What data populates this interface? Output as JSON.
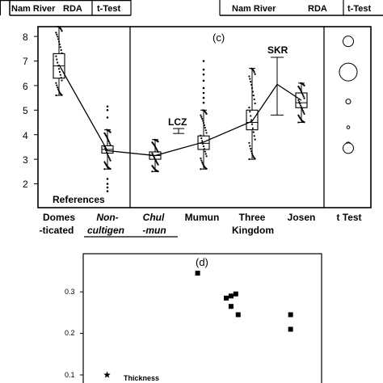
{
  "header": {
    "left_group": [
      "Nam River",
      "RDA",
      "t-Test"
    ],
    "right_group": [
      "Nam River",
      "RDA",
      "t-Test"
    ]
  },
  "panel_c": {
    "label": "(c)",
    "y_ticks": [
      "8",
      "7",
      "6",
      "5",
      "4",
      "3",
      "2"
    ],
    "references_label": "References",
    "annotations": {
      "lcz": "LCZ",
      "skr": "SKR"
    },
    "x_labels": [
      {
        "line1": "Domes",
        "line2": "-ticated",
        "style": "normal"
      },
      {
        "line1": "Non-",
        "line2": "cultigen",
        "style": "italic-underline"
      },
      {
        "line1": "Chul",
        "line2": "-mun",
        "style": "italic-underline"
      },
      {
        "line1": "Mumun",
        "line2": "",
        "style": "normal"
      },
      {
        "line1": "Three",
        "line2": "Kingdom",
        "style": "normal"
      },
      {
        "line1": "Josen",
        "line2": "",
        "style": "normal"
      },
      {
        "line1": "t Test",
        "line2": "",
        "style": "normal"
      }
    ]
  },
  "panel_d": {
    "label": "(d)",
    "y_ticks": [
      "0.3",
      "0.2",
      "0.1"
    ],
    "point_label": "Thickness"
  },
  "chart_data": [
    {
      "type": "box",
      "title": "(c)",
      "ylim": [
        1.3,
        8.6
      ],
      "categories": [
        "Domes -ticated",
        "Non-cultigen",
        "Chul-mun",
        "Mumun",
        "Three Kingdom",
        "Josen"
      ],
      "boxes": [
        {
          "q1": 6.3,
          "median": 6.8,
          "q3": 7.3,
          "whisker_low": 5.6,
          "whisker_high": 8.4
        },
        {
          "q1": 3.25,
          "median": 3.4,
          "q3": 3.55,
          "whisker_low": 2.6,
          "whisker_high": 4.2
        },
        {
          "q1": 3.0,
          "median": 3.15,
          "q3": 3.3,
          "whisker_low": 2.5,
          "whisker_high": 3.8
        },
        {
          "q1": 3.4,
          "median": 3.65,
          "q3": 3.95,
          "whisker_low": 2.6,
          "whisker_high": 5.0
        },
        {
          "q1": 4.2,
          "median": 4.5,
          "q3": 5.0,
          "whisker_low": 3.0,
          "whisker_high": 6.7
        },
        {
          "q1": 5.1,
          "median": 5.3,
          "q3": 5.7,
          "whisker_low": 4.5,
          "whisker_high": 6.1
        }
      ],
      "mean_line": [
        6.85,
        3.35,
        3.15,
        3.7,
        4.55,
        6.05,
        5.4
      ],
      "mean_line_x": [
        "Domes -ticated",
        "Non-cultigen",
        "Chul-mun",
        "Mumun",
        "Three Kingdom",
        "SKR",
        "Josen"
      ],
      "reference_marks": [
        {
          "label": "LCZ",
          "low": 4.05,
          "high": 4.25
        },
        {
          "label": "SKR",
          "low": 4.8,
          "high": 7.15,
          "center": 6.05
        }
      ],
      "outliers": {
        "Non-cultigen": [
          5.15,
          5.0,
          4.7,
          2.2,
          2.0,
          1.85,
          1.7
        ],
        "Mumun": [
          7.0,
          6.65,
          6.45,
          6.2,
          5.9,
          5.7,
          5.5,
          5.3
        ]
      },
      "t_test_circles": [
        {
          "y": 7.8,
          "size": "medium"
        },
        {
          "y": 6.55,
          "size": "large"
        },
        {
          "y": 5.35,
          "size": "small"
        },
        {
          "y": 4.3,
          "size": "tiny"
        },
        {
          "y": 3.6,
          "size": "small"
        },
        {
          "y": 3.45,
          "size": "medium"
        }
      ]
    },
    {
      "type": "scatter",
      "title": "(d)",
      "ylim": [
        0.08,
        0.38
      ],
      "xlim": [
        0,
        1
      ],
      "series": [
        {
          "marker": "square",
          "points": [
            {
              "x": 0.48,
              "y": 0.345
            },
            {
              "x": 0.6,
              "y": 0.285
            },
            {
              "x": 0.62,
              "y": 0.29
            },
            {
              "x": 0.64,
              "y": 0.295
            },
            {
              "x": 0.62,
              "y": 0.265
            },
            {
              "x": 0.65,
              "y": 0.245
            },
            {
              "x": 0.87,
              "y": 0.245
            },
            {
              "x": 0.87,
              "y": 0.21
            }
          ]
        },
        {
          "name": "Thickness",
          "marker": "star",
          "points": [
            {
              "x": 0.1,
              "y": 0.1
            }
          ]
        }
      ]
    }
  ]
}
